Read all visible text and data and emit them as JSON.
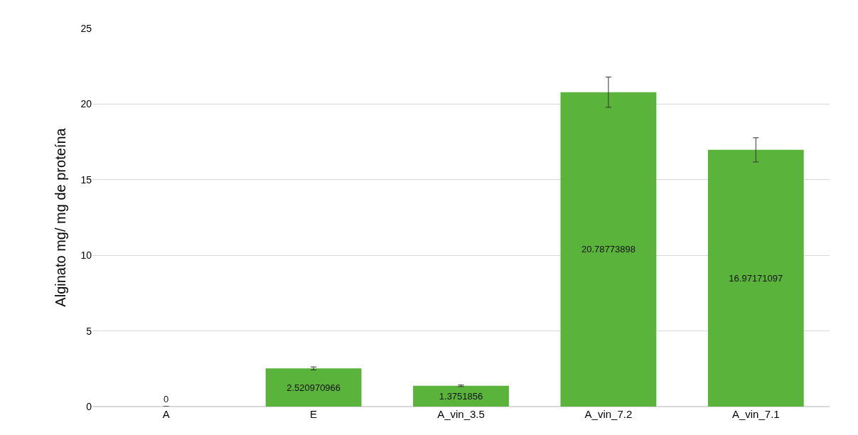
{
  "chart_data": {
    "type": "bar",
    "ylabel": "Alginato mg/ mg de proteína",
    "categories": [
      "A",
      "E",
      "A_vin_3.5",
      "A_vin_7.2",
      "A_vin_7.1"
    ],
    "values": [
      0,
      2.520970966,
      1.3751856,
      20.78773898,
      16.97171097
    ],
    "errors": [
      null,
      0.1,
      0.05,
      1.0,
      0.8
    ],
    "color": "#5ab43c",
    "ylim": [
      0,
      25
    ],
    "yticks": [
      0,
      5,
      10,
      15,
      20,
      25
    ],
    "grid": "y",
    "data_labels": true
  }
}
